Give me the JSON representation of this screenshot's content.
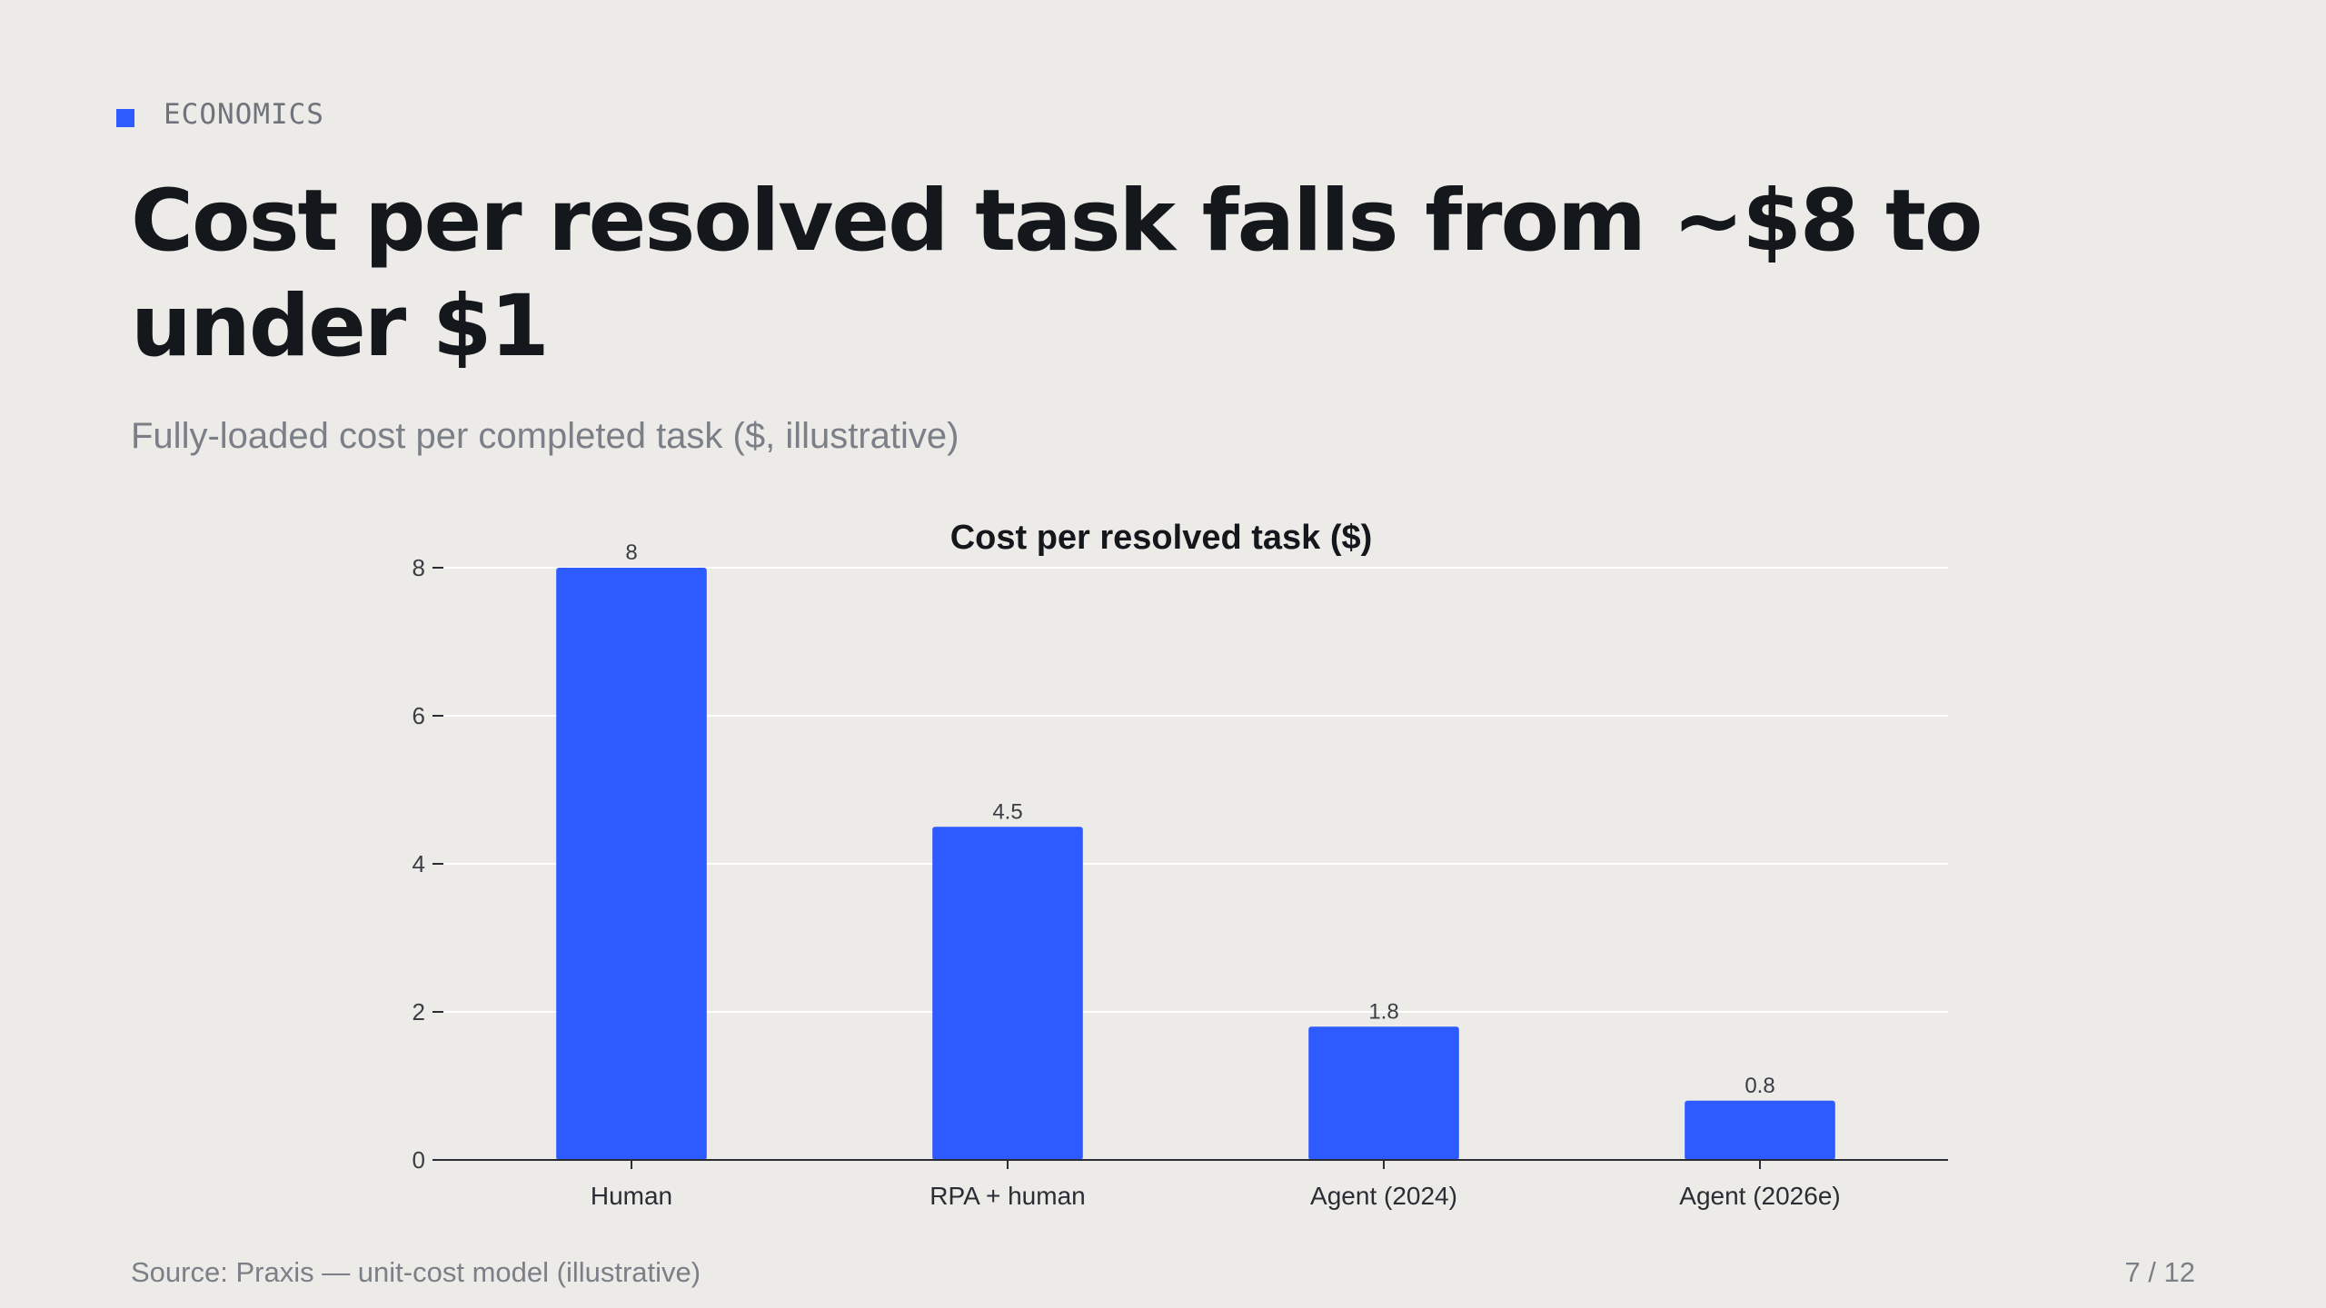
{
  "eyebrow": {
    "label": "ECONOMICS",
    "accent_color": "#2e5bff"
  },
  "title": "Cost per resolved task falls from ~$8 to under $1",
  "subtitle": "Fully-loaded cost per completed task ($, illustrative)",
  "footer": {
    "source": "Source: Praxis — unit-cost model (illustrative)",
    "page": "7 / 12"
  },
  "chart_data": {
    "type": "bar",
    "title": "Cost per resolved task ($)",
    "categories": [
      "Human",
      "RPA + human",
      "Agent (2024)",
      "Agent (2026e)"
    ],
    "values": [
      8,
      4.5,
      1.8,
      0.8
    ],
    "data_labels": [
      "8",
      "4.5",
      "1.8",
      "0.8"
    ],
    "xlabel": "",
    "ylabel": "",
    "ylim": [
      0,
      8
    ],
    "yticks": [
      0,
      2,
      4,
      6,
      8
    ],
    "grid": true,
    "legend": "none",
    "bar_color": "#2e5bff"
  }
}
